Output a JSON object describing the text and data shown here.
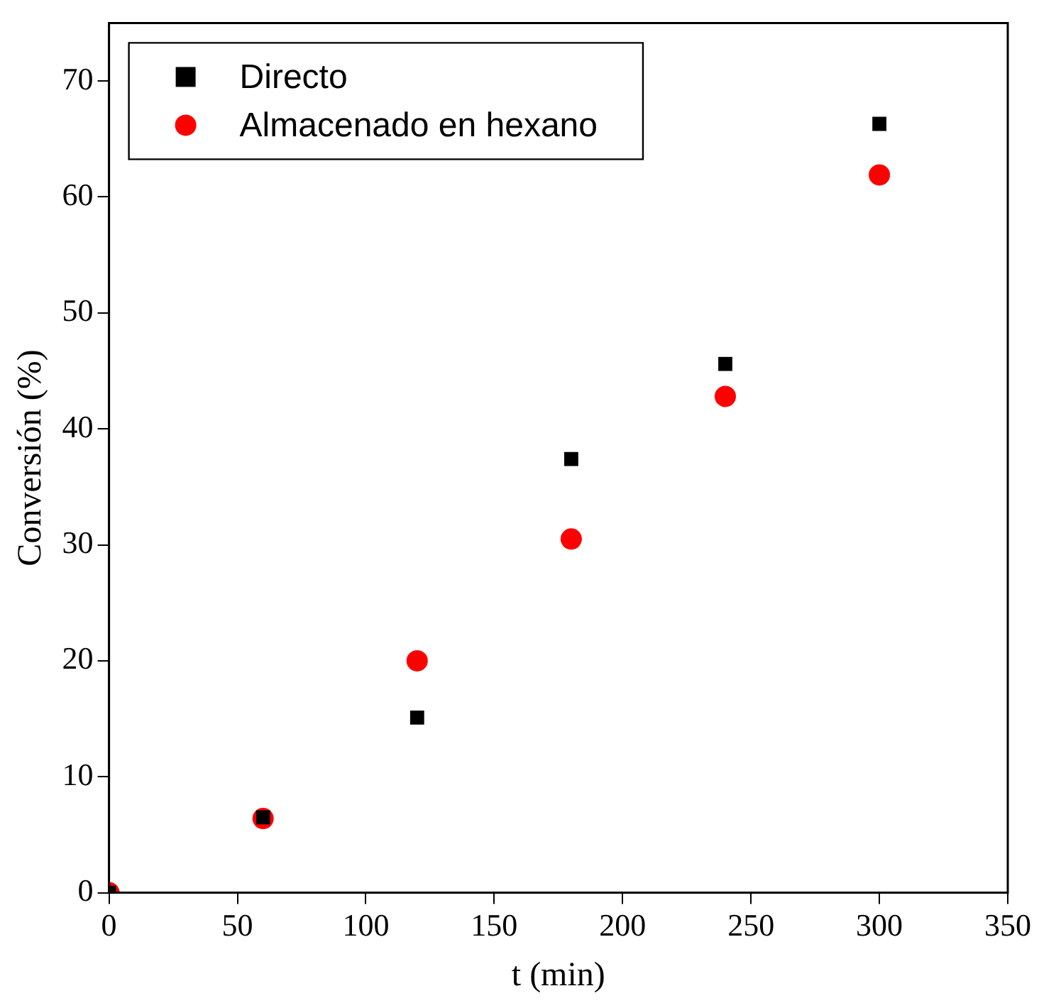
{
  "chart_data": {
    "type": "scatter",
    "xlabel": "t (min)",
    "ylabel": "Conversión (%)",
    "xlim": [
      0,
      350
    ],
    "xticks": [
      0,
      50,
      100,
      150,
      200,
      250,
      300,
      350
    ],
    "ylim": [
      0,
      75
    ],
    "yticks": [
      0,
      10,
      20,
      30,
      40,
      50,
      60,
      70
    ],
    "grid": false,
    "legend": "top left",
    "series": [
      {
        "name": "Directo",
        "color": "#000000",
        "marker": "square",
        "x": [
          0,
          60,
          120,
          180,
          240,
          300
        ],
        "values": [
          0,
          6.5,
          15.1,
          37.4,
          45.6,
          66.3
        ]
      },
      {
        "name": "Almacenado en hexano",
        "color": "#ff0000",
        "marker": "circle",
        "x": [
          0,
          60,
          120,
          180,
          240,
          300
        ],
        "values": [
          0,
          6.4,
          20,
          30.5,
          42.8,
          61.9
        ]
      }
    ]
  }
}
